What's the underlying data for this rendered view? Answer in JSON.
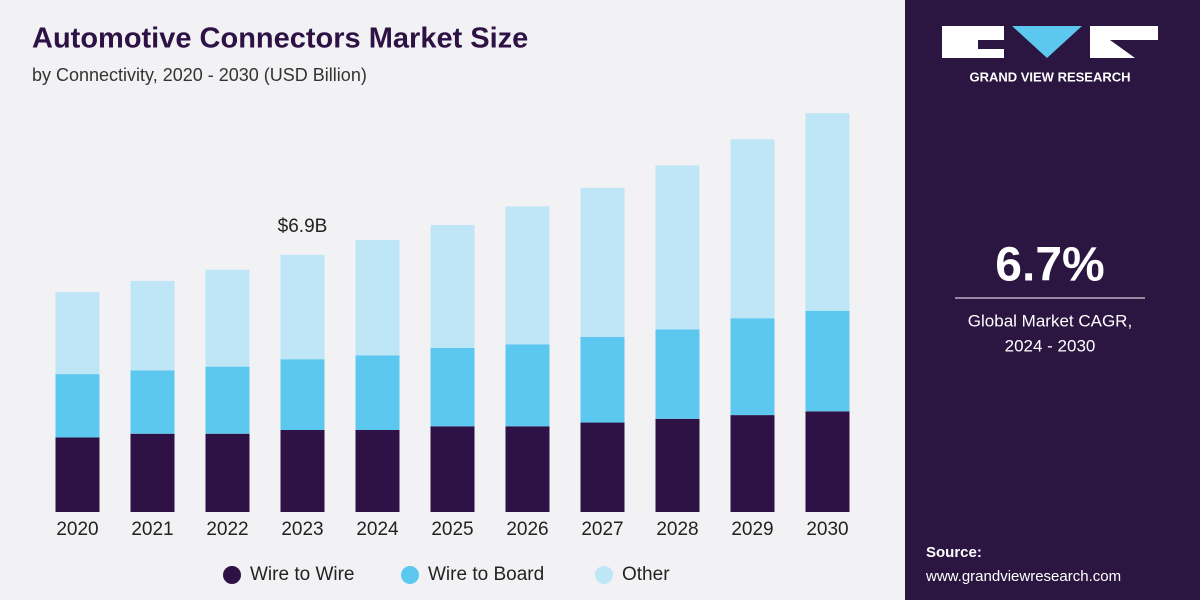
{
  "chart_data": {
    "type": "stacked-bar",
    "title": "Automotive Connectors Market Size",
    "subtitle": "by Connectivity, 2020 - 2030 (USD Billion)",
    "categories": [
      "2020",
      "2021",
      "2022",
      "2023",
      "2024",
      "2025",
      "2026",
      "2027",
      "2028",
      "2029",
      "2030"
    ],
    "series": [
      {
        "name": "Wire to Wire",
        "color": "#2e1245",
        "values": [
          2.0,
          2.1,
          2.1,
          2.2,
          2.2,
          2.3,
          2.3,
          2.4,
          2.5,
          2.6,
          2.7
        ]
      },
      {
        "name": "Wire to Board",
        "color": "#5cc8f0",
        "values": [
          1.7,
          1.7,
          1.8,
          1.9,
          2.0,
          2.1,
          2.2,
          2.3,
          2.4,
          2.6,
          2.7
        ]
      },
      {
        "name": "Other",
        "color": "#bfe6f7",
        "values": [
          2.2,
          2.4,
          2.6,
          2.8,
          3.1,
          3.3,
          3.7,
          4.0,
          4.4,
          4.8,
          5.3
        ]
      }
    ],
    "annotations": [
      {
        "x": "2023",
        "value": 6.9,
        "label": "$6.9B"
      }
    ],
    "ylim": [
      0,
      11
    ],
    "grid": false
  },
  "side_panel": {
    "brand": "GRAND VIEW RESEARCH",
    "cagr": "6.7%",
    "cagr_caption": [
      "Global Market CAGR,",
      "2024 - 2030"
    ],
    "source_label": "Source:",
    "source_url": "www.grandviewresearch.com"
  }
}
